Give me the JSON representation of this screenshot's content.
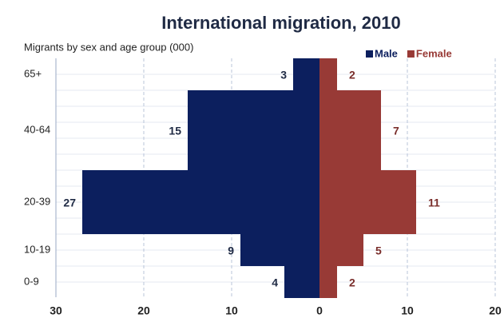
{
  "chart_data": {
    "type": "pyramid",
    "title": "International migration, 2010",
    "subtitle": "Migrants by sex and age group (000)",
    "categories": [
      "65+",
      "40-64",
      "20-39",
      "10-19",
      "0-9"
    ],
    "series": [
      {
        "name": "Male",
        "color": "#0c1f5e",
        "side": "left",
        "values": [
          3,
          15,
          27,
          9,
          4
        ]
      },
      {
        "name": "Female",
        "color": "#983a36",
        "side": "right",
        "values": [
          2,
          7,
          11,
          5,
          2
        ]
      }
    ],
    "xlim": [
      -30,
      20
    ],
    "xticks": [
      {
        "value": -30,
        "label": "30"
      },
      {
        "value": -20,
        "label": "20"
      },
      {
        "value": -10,
        "label": "10"
      },
      0,
      10,
      20
    ],
    "grid": true,
    "legend": "top-right"
  }
}
